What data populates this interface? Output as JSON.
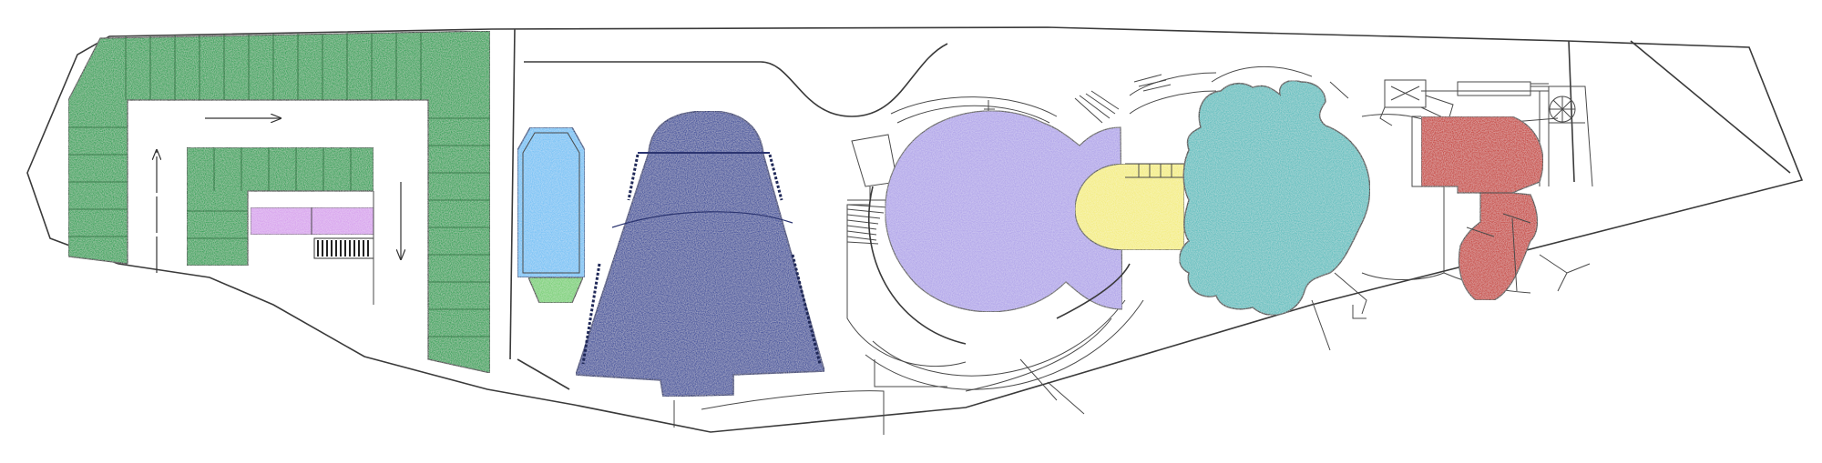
{
  "zones": [
    {
      "id": "parking",
      "color": "#3fa660",
      "icon": "parking-area"
    },
    {
      "id": "parking-kiosk",
      "color": "#d9a6ee",
      "icon": "kiosk"
    },
    {
      "id": "pool-rect",
      "color": "#7cc4f5",
      "icon": "pool"
    },
    {
      "id": "pool-rect-end",
      "color": "#7ed27a",
      "icon": "pool-end"
    },
    {
      "id": "fan-hall",
      "color": "#4d5aa0",
      "icon": "hall"
    },
    {
      "id": "round-hall",
      "color": "#b4a8ea",
      "icon": "hall"
    },
    {
      "id": "link-room",
      "color": "#f4ee86",
      "icon": "room"
    },
    {
      "id": "blob-pool",
      "color": "#67c1c1",
      "icon": "pool"
    },
    {
      "id": "rooms-red",
      "color": "#c9504a",
      "icon": "room"
    }
  ]
}
